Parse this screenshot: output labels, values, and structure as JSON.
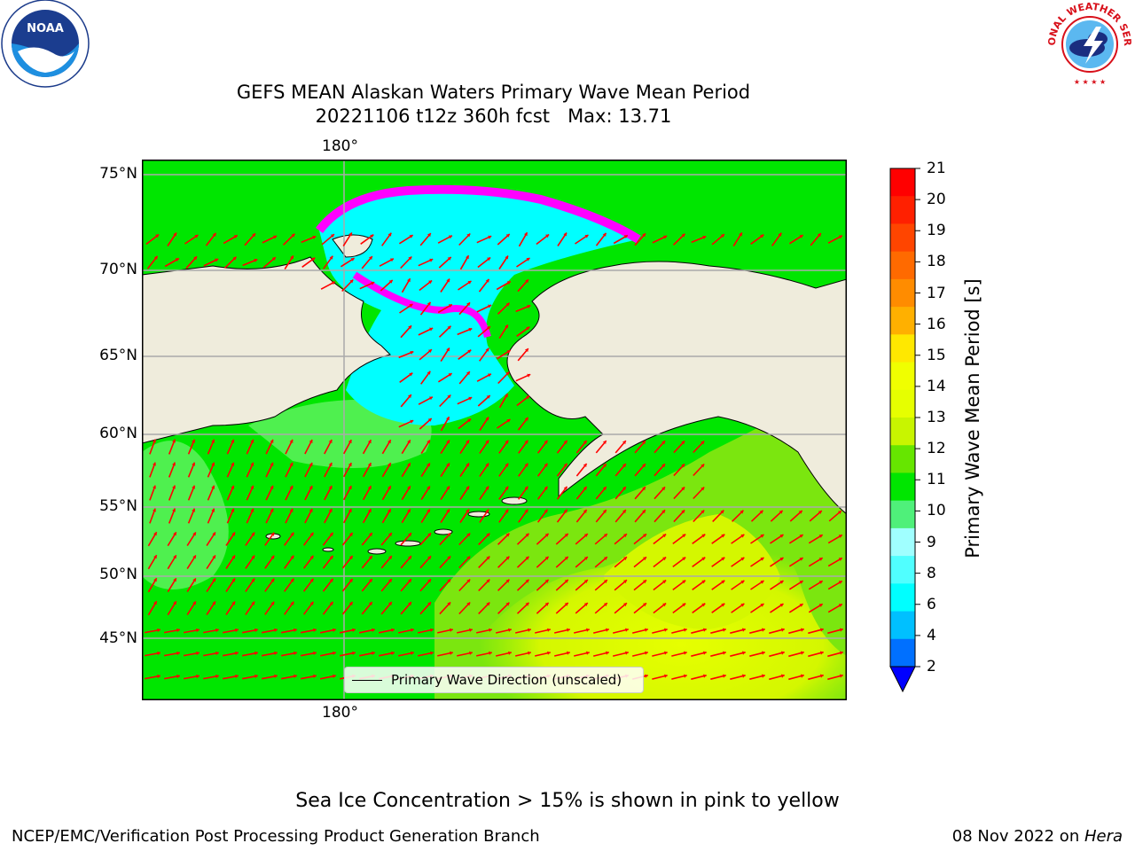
{
  "title": {
    "line1": "GEFS MEAN Alaskan Waters Primary Wave Mean Period",
    "line2": "20221106 t12z 360h fcst   Max: 13.71"
  },
  "map": {
    "lon_label_top": "180°",
    "lon_label_bottom": "180°",
    "lat_labels": [
      "75°N",
      "70°N",
      "65°N",
      "60°N",
      "55°N",
      "50°N",
      "45°N"
    ],
    "legend_label": "Primary Wave Direction (unscaled)",
    "colors": {
      "land": "#efecdc",
      "ocean_10_11": "#00e600",
      "ocean_9_10": "#4ff04f",
      "ocean_11_12": "#7be60f",
      "ocean_12_13": "#bff500",
      "ocean_13_14": "#e6ff00",
      "ice_low_period": "#00ffff",
      "ice_edge": "#ff00ff",
      "arrow": "#ff0000"
    }
  },
  "colorbar": {
    "title": "Primary Wave Mean Period [s]",
    "labels": [
      "21",
      "20",
      "19",
      "18",
      "17",
      "16",
      "15",
      "14",
      "13",
      "12",
      "11",
      "10",
      "9",
      "8",
      "6",
      "4",
      "2"
    ],
    "colors": [
      "#ff0000",
      "#ff2000",
      "#ff4500",
      "#ff6a00",
      "#ff8c00",
      "#ffb000",
      "#ffe800",
      "#f0ff00",
      "#e6ff00",
      "#c8f500",
      "#66e600",
      "#00e600",
      "#4ff07a",
      "#a0ffff",
      "#50ffff",
      "#00ffff",
      "#00c0ff",
      "#0070ff"
    ],
    "extend_color": "#0000ff"
  },
  "note": "Sea Ice Concentration > 15% is shown in pink to yellow",
  "footer": {
    "left": "NCEP/EMC/Verification Post Processing Product Generation Branch",
    "right_prefix": "08 Nov 2022 on ",
    "right_host": "Hera"
  }
}
